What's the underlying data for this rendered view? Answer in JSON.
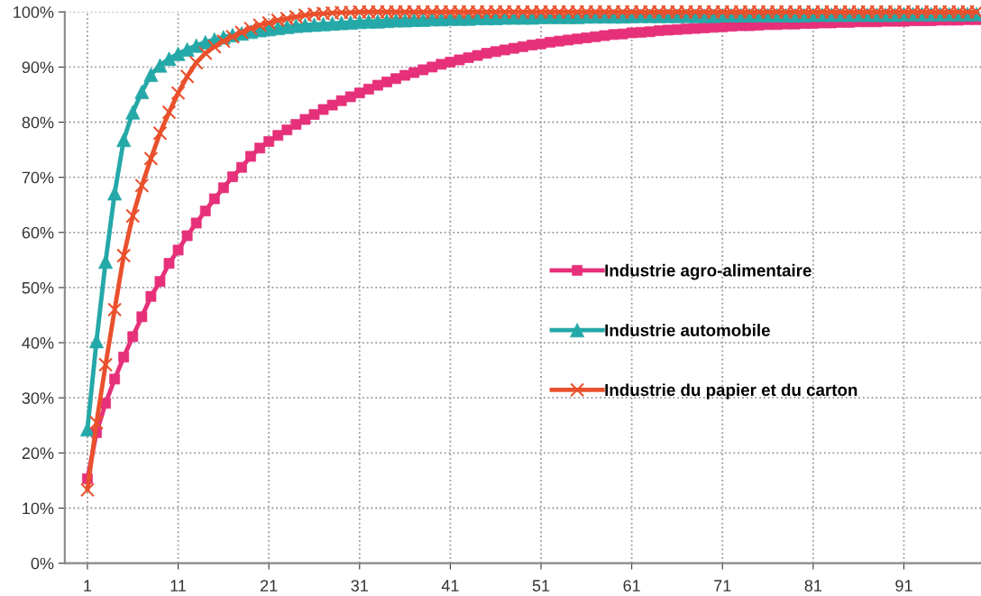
{
  "chart_data": {
    "type": "line",
    "x": [
      1,
      2,
      3,
      4,
      5,
      6,
      7,
      8,
      9,
      10,
      11,
      12,
      13,
      14,
      15,
      16,
      17,
      18,
      19,
      20,
      21,
      22,
      23,
      24,
      25,
      26,
      27,
      28,
      29,
      30,
      31,
      32,
      33,
      34,
      35,
      36,
      37,
      38,
      39,
      40,
      41,
      42,
      43,
      44,
      45,
      46,
      47,
      48,
      49,
      50,
      51,
      52,
      53,
      54,
      55,
      56,
      57,
      58,
      59,
      60,
      61,
      62,
      63,
      64,
      65,
      66,
      67,
      68,
      69,
      70,
      71,
      72,
      73,
      74,
      75,
      76,
      77,
      78,
      79,
      80,
      81,
      82,
      83,
      84,
      85,
      86,
      87,
      88,
      89,
      90,
      91,
      92,
      93,
      94,
      95,
      96,
      97,
      98,
      99
    ],
    "xlim": [
      -1.5,
      99.5
    ],
    "xticks": [
      1,
      11,
      21,
      31,
      41,
      51,
      61,
      71,
      81,
      91
    ],
    "ylim": [
      0,
      100
    ],
    "yticks": [
      {
        "value": 0,
        "label": "0%"
      },
      {
        "value": 10,
        "label": "10%"
      },
      {
        "value": 20,
        "label": "20%"
      },
      {
        "value": 30,
        "label": "30%"
      },
      {
        "value": 40,
        "label": "40%"
      },
      {
        "value": 50,
        "label": "50%"
      },
      {
        "value": 60,
        "label": "60%"
      },
      {
        "value": 70,
        "label": "70%"
      },
      {
        "value": 80,
        "label": "80%"
      },
      {
        "value": 90,
        "label": "90%"
      },
      {
        "value": 100,
        "label": "100%"
      }
    ],
    "grid": true,
    "legend": "right",
    "line_style": "solid",
    "series": [
      {
        "name": "Industrie agro-alimentaire",
        "color": "#e6307a",
        "marker": "square",
        "values": [
          15.3,
          23.7,
          29,
          33.4,
          37.4,
          41.1,
          44.7,
          48.4,
          51.1,
          54.4,
          56.8,
          59.4,
          61.7,
          63.9,
          66.1,
          68.1,
          70.1,
          71.8,
          73.8,
          75.3,
          76.5,
          77.6,
          78.6,
          79.6,
          80.5,
          81.4,
          82.3,
          83.1,
          83.9,
          84.6,
          85.3,
          86.0,
          86.7,
          87.3,
          87.9,
          88.5,
          89.0,
          89.5,
          90.0,
          90.5,
          90.9,
          91.3,
          91.7,
          92.1,
          92.5,
          92.8,
          93.1,
          93.4,
          93.7,
          94.0,
          94.2,
          94.5,
          94.7,
          94.9,
          95.1,
          95.3,
          95.5,
          95.7,
          95.9,
          96.0,
          96.2,
          96.3,
          96.4,
          96.6,
          96.7,
          96.8,
          96.9,
          97.0,
          97.1,
          97.2,
          97.3,
          97.4,
          97.5,
          97.5,
          97.6,
          97.7,
          97.7,
          97.8,
          97.8,
          97.9,
          97.9,
          98.0,
          98.0,
          98.1,
          98.1,
          98.2,
          98.2,
          98.2,
          98.3,
          98.3,
          98.3,
          98.4,
          98.4,
          98.4,
          98.5,
          98.5,
          98.5,
          98.6,
          98.6
        ]
      },
      {
        "name": "Industrie automobile",
        "color": "#25a8a8",
        "marker": "triangle",
        "values": [
          24.3,
          40.3,
          54.7,
          67.1,
          76.8,
          81.8,
          85.5,
          88.6,
          90.3,
          91.5,
          92.4,
          93.2,
          93.9,
          94.5,
          95.0,
          95.4,
          95.8,
          96.1,
          96.4,
          96.7,
          96.9,
          97.1,
          97.3,
          97.5,
          97.6,
          97.7,
          97.8,
          97.9,
          98.0,
          98.1,
          98.2,
          98.3,
          98.3,
          98.4,
          98.5,
          98.5,
          98.6,
          98.6,
          98.7,
          98.7,
          98.8,
          98.8,
          98.8,
          98.9,
          98.9,
          98.9,
          99.0,
          99.0,
          99.0,
          99.0,
          99.1,
          99.1,
          99.1,
          99.1,
          99.1,
          99.2,
          99.2,
          99.2,
          99.2,
          99.2,
          99.3,
          99.3,
          99.3,
          99.3,
          99.3,
          99.3,
          99.3,
          99.3,
          99.3,
          99.3,
          99.4,
          99.4,
          99.4,
          99.4,
          99.4,
          99.4,
          99.4,
          99.4,
          99.4,
          99.4,
          99.5,
          99.5,
          99.5,
          99.5,
          99.5,
          99.5,
          99.5,
          99.5,
          99.5,
          99.5,
          99.6,
          99.6,
          99.6,
          99.6,
          99.6,
          99.6,
          99.6,
          99.6,
          99.6
        ]
      },
      {
        "name": "Industrie du papier et du carton",
        "color": "#e9502c",
        "marker": "cross",
        "values": [
          13.3,
          25.5,
          36,
          46,
          55.8,
          63,
          68.5,
          73.4,
          78,
          81.8,
          85.3,
          88.3,
          90.8,
          92.5,
          93.7,
          94.7,
          95.5,
          96.3,
          97.0,
          97.6,
          98.0,
          98.5,
          98.8,
          99.1,
          99.4,
          99.6,
          99.7,
          99.8,
          99.9,
          99.9,
          100,
          100,
          100,
          100,
          100,
          100,
          100,
          100,
          100,
          100,
          100,
          100,
          100,
          100,
          100,
          100,
          100,
          100,
          100,
          100,
          100,
          100,
          100,
          100,
          100,
          100,
          100,
          100,
          100,
          100,
          100,
          100,
          100,
          100,
          100,
          100,
          100,
          100,
          100,
          100,
          100,
          100,
          100,
          100,
          100,
          100,
          100,
          100,
          100,
          100,
          100,
          100,
          100,
          100,
          100,
          100,
          100,
          100,
          100,
          100,
          100,
          100,
          100,
          100,
          100,
          100,
          100,
          100,
          100
        ]
      }
    ]
  }
}
